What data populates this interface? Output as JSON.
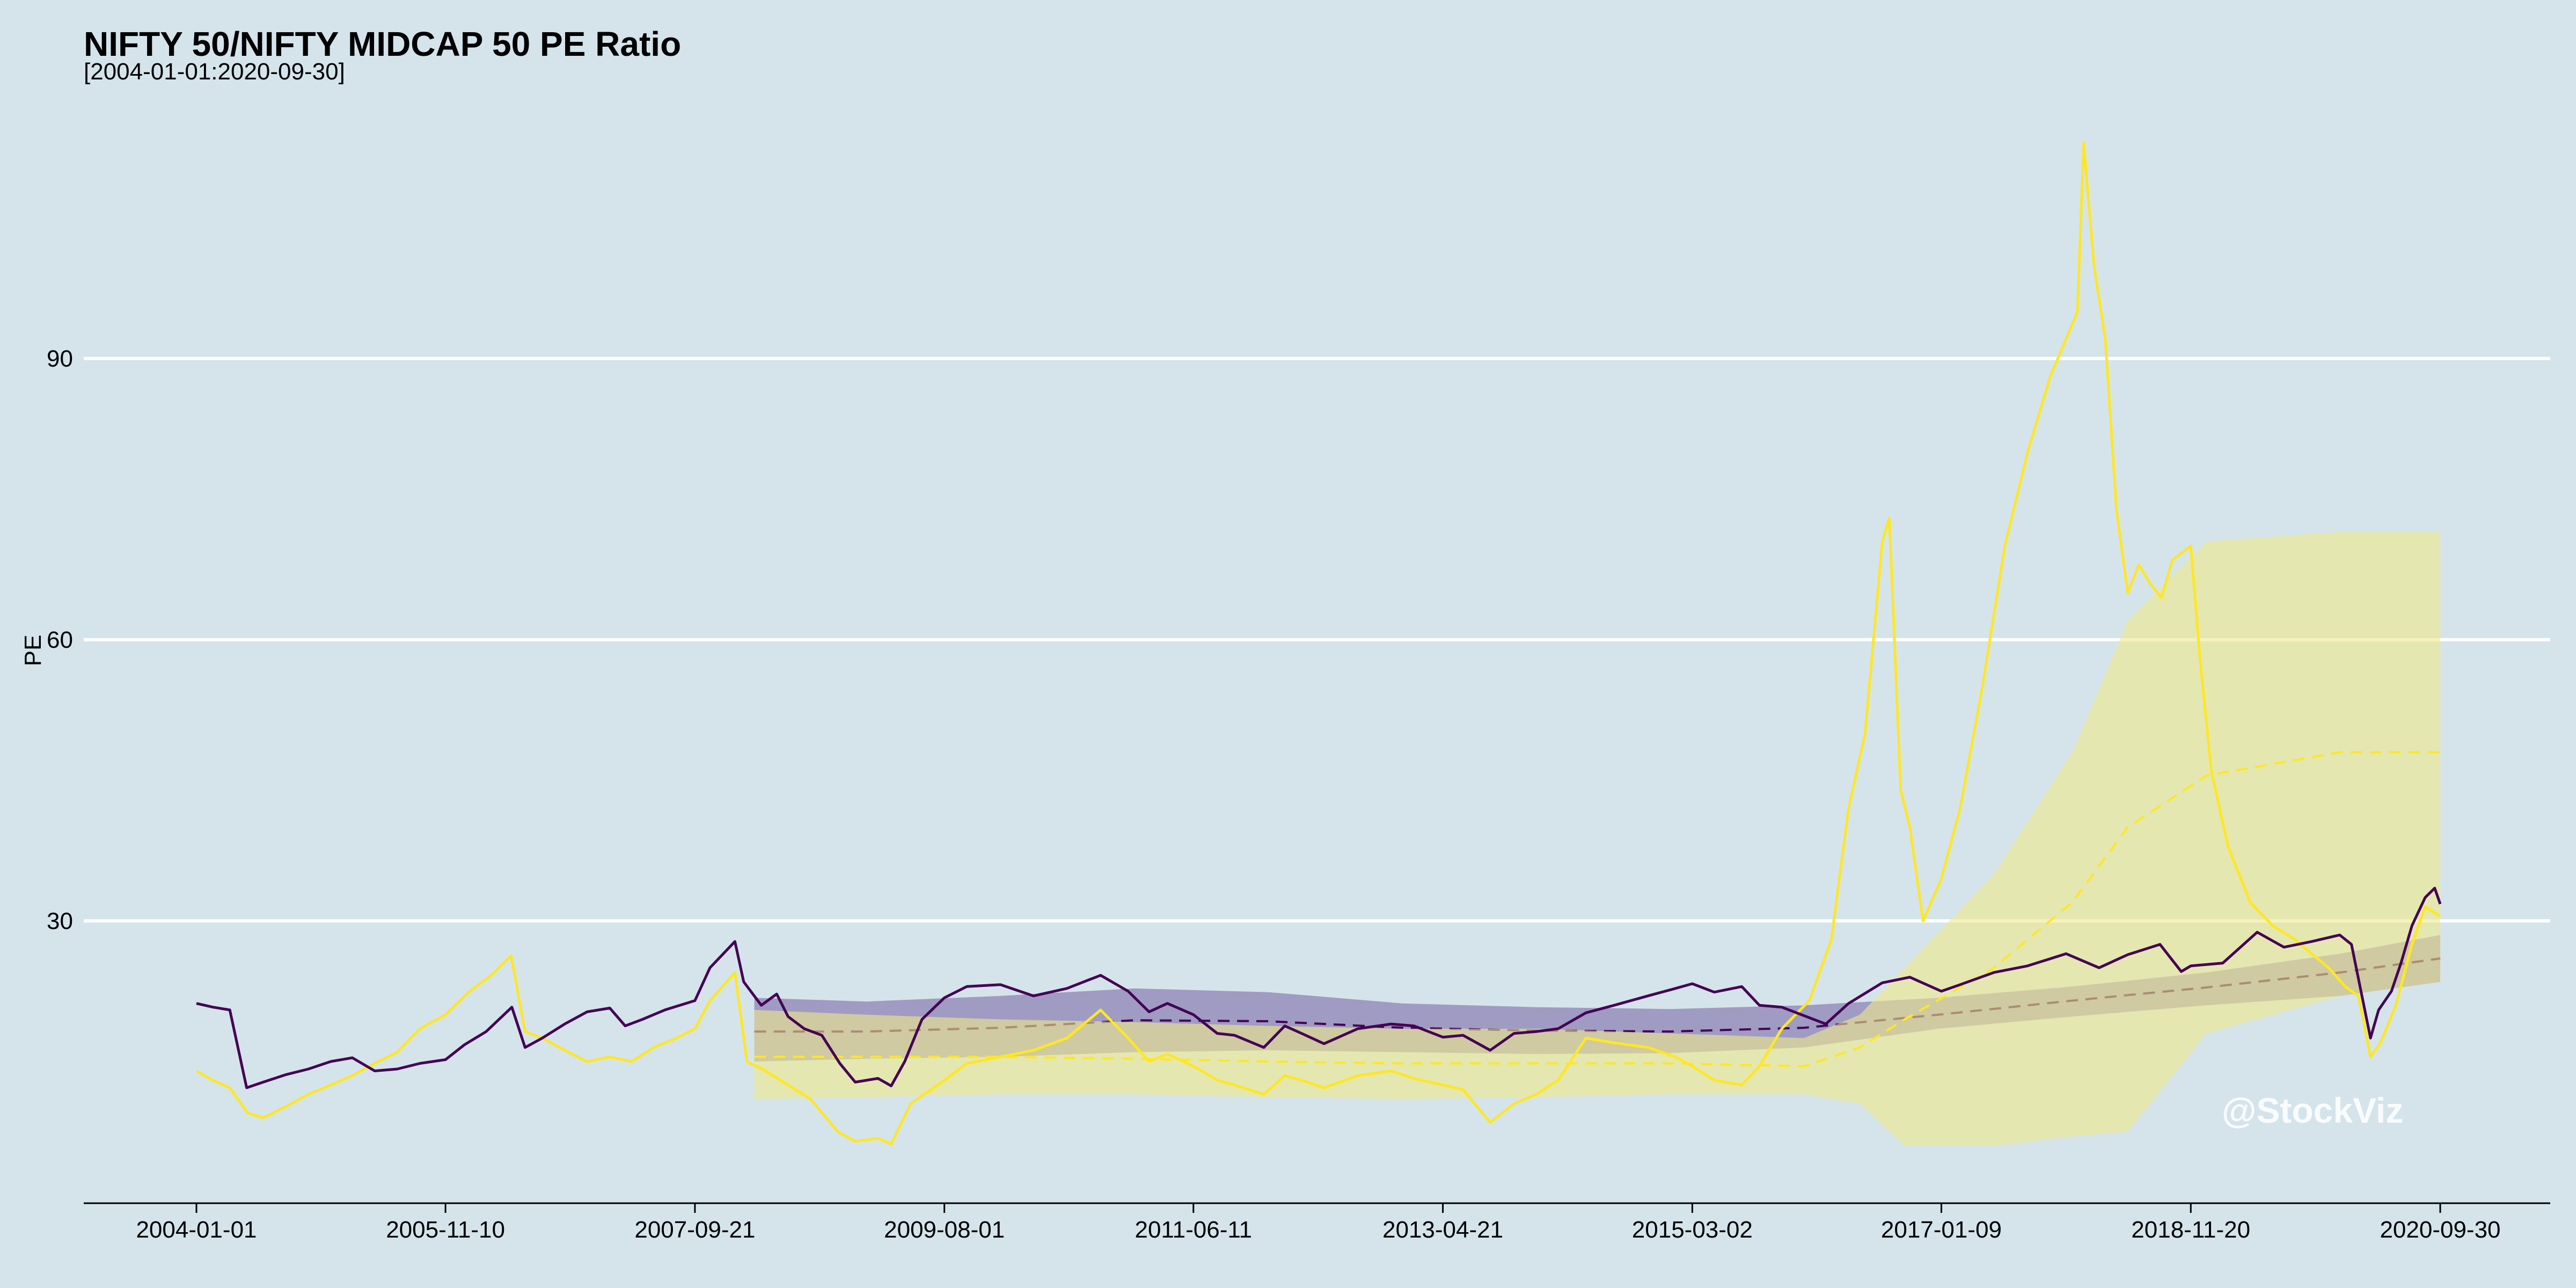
{
  "chart_data": {
    "type": "line",
    "title": "NIFTY 50/NIFTY MIDCAP 50 PE Ratio",
    "subtitle": "[2004-01-01:2020-09-30]",
    "xlabel": "",
    "ylabel": "PE",
    "ylim": [
      0,
      120
    ],
    "yticks": [
      30,
      60,
      90
    ],
    "xticks": [
      "2004-01-01",
      "2005-11-10",
      "2007-09-21",
      "2009-08-01",
      "2011-06-11",
      "2013-04-21",
      "2015-03-02",
      "2017-01-09",
      "2018-11-20",
      "2020-09-30"
    ],
    "x_range": [
      "2004-01-01",
      "2020-09-30"
    ],
    "grid": "horizontal",
    "watermark": "@StockViz",
    "colors": {
      "background": "#d5e4eb",
      "gridline": "#ffffff",
      "nifty50": "#440154",
      "midcap50": "#fde725",
      "nifty50_band": "#7b6aa6",
      "midcap50_band": "#f0e98a"
    },
    "series": [
      {
        "key": "nifty50",
        "color": "#440154",
        "points": [
          [
            "2004-01-01",
            21.2
          ],
          [
            "2004-02-15",
            20.8
          ],
          [
            "2004-04-01",
            20.5
          ],
          [
            "2004-05-17",
            12.2
          ],
          [
            "2004-07-01",
            12.8
          ],
          [
            "2004-09-01",
            13.6
          ],
          [
            "2004-11-01",
            14.2
          ],
          [
            "2005-01-01",
            15.0
          ],
          [
            "2005-03-01",
            15.4
          ],
          [
            "2005-05-01",
            14.0
          ],
          [
            "2005-07-01",
            14.2
          ],
          [
            "2005-09-01",
            14.8
          ],
          [
            "2005-11-10",
            15.2
          ],
          [
            "2006-01-01",
            16.8
          ],
          [
            "2006-03-01",
            18.2
          ],
          [
            "2006-05-10",
            20.8
          ],
          [
            "2006-06-15",
            16.5
          ],
          [
            "2006-08-01",
            17.5
          ],
          [
            "2006-10-01",
            19.0
          ],
          [
            "2006-12-01",
            20.3
          ],
          [
            "2007-02-01",
            20.7
          ],
          [
            "2007-03-15",
            18.8
          ],
          [
            "2007-05-01",
            19.5
          ],
          [
            "2007-07-01",
            20.5
          ],
          [
            "2007-09-21",
            21.5
          ],
          [
            "2007-11-01",
            25.0
          ],
          [
            "2008-01-08",
            27.8
          ],
          [
            "2008-02-01",
            23.5
          ],
          [
            "2008-03-20",
            21.0
          ],
          [
            "2008-05-01",
            22.2
          ],
          [
            "2008-06-01",
            19.8
          ],
          [
            "2008-07-15",
            18.5
          ],
          [
            "2008-09-01",
            17.8
          ],
          [
            "2008-10-20",
            14.8
          ],
          [
            "2008-12-01",
            12.8
          ],
          [
            "2009-02-01",
            13.2
          ],
          [
            "2009-03-09",
            12.4
          ],
          [
            "2009-04-15",
            15.0
          ],
          [
            "2009-06-01",
            19.5
          ],
          [
            "2009-08-01",
            21.8
          ],
          [
            "2009-10-01",
            23.0
          ],
          [
            "2010-01-01",
            23.2
          ],
          [
            "2010-04-01",
            22.0
          ],
          [
            "2010-07-01",
            22.8
          ],
          [
            "2010-10-01",
            24.2
          ],
          [
            "2010-12-15",
            22.5
          ],
          [
            "2011-02-10",
            20.3
          ],
          [
            "2011-04-01",
            21.2
          ],
          [
            "2011-06-11",
            20.0
          ],
          [
            "2011-08-15",
            18.0
          ],
          [
            "2011-10-01",
            17.8
          ],
          [
            "2011-12-20",
            16.5
          ],
          [
            "2012-02-15",
            18.8
          ],
          [
            "2012-04-01",
            18.0
          ],
          [
            "2012-06-01",
            16.9
          ],
          [
            "2012-09-01",
            18.5
          ],
          [
            "2012-12-01",
            19.0
          ],
          [
            "2013-02-01",
            18.8
          ],
          [
            "2013-04-21",
            17.6
          ],
          [
            "2013-06-15",
            17.8
          ],
          [
            "2013-08-28",
            16.2
          ],
          [
            "2013-11-01",
            18.0
          ],
          [
            "2014-01-01",
            18.2
          ],
          [
            "2014-03-01",
            18.5
          ],
          [
            "2014-05-16",
            20.2
          ],
          [
            "2014-08-01",
            21.0
          ],
          [
            "2014-11-01",
            22.0
          ],
          [
            "2015-01-15",
            22.8
          ],
          [
            "2015-03-02",
            23.3
          ],
          [
            "2015-05-01",
            22.4
          ],
          [
            "2015-07-15",
            23.0
          ],
          [
            "2015-09-01",
            21.0
          ],
          [
            "2015-11-01",
            20.8
          ],
          [
            "2016-02-29",
            19.0
          ],
          [
            "2016-05-01",
            21.2
          ],
          [
            "2016-08-01",
            23.4
          ],
          [
            "2016-10-15",
            24.0
          ],
          [
            "2017-01-09",
            22.5
          ],
          [
            "2017-03-01",
            23.2
          ],
          [
            "2017-06-01",
            24.5
          ],
          [
            "2017-09-01",
            25.2
          ],
          [
            "2017-12-15",
            26.5
          ],
          [
            "2018-03-15",
            25.0
          ],
          [
            "2018-06-01",
            26.4
          ],
          [
            "2018-08-28",
            27.5
          ],
          [
            "2018-10-25",
            24.6
          ],
          [
            "2018-11-20",
            25.2
          ],
          [
            "2019-02-15",
            25.5
          ],
          [
            "2019-05-20",
            28.8
          ],
          [
            "2019-08-01",
            27.2
          ],
          [
            "2019-10-15",
            27.8
          ],
          [
            "2019-12-31",
            28.5
          ],
          [
            "2020-02-01",
            27.5
          ],
          [
            "2020-03-24",
            17.5
          ],
          [
            "2020-04-15",
            20.5
          ],
          [
            "2020-05-20",
            22.5
          ],
          [
            "2020-06-15",
            25.5
          ],
          [
            "2020-07-15",
            29.5
          ],
          [
            "2020-08-20",
            32.5
          ],
          [
            "2020-09-15",
            33.5
          ],
          [
            "2020-09-30",
            31.8
          ]
        ]
      },
      {
        "key": "midcap50",
        "color": "#fde725",
        "points": [
          [
            "2004-01-01",
            14.0
          ],
          [
            "2004-02-15",
            13.0
          ],
          [
            "2004-04-01",
            12.2
          ],
          [
            "2004-05-20",
            9.5
          ],
          [
            "2004-07-01",
            9.0
          ],
          [
            "2004-09-01",
            10.2
          ],
          [
            "2004-11-01",
            11.5
          ],
          [
            "2005-01-01",
            12.5
          ],
          [
            "2005-03-01",
            13.5
          ],
          [
            "2005-05-01",
            14.8
          ],
          [
            "2005-07-01",
            16.0
          ],
          [
            "2005-09-01",
            18.5
          ],
          [
            "2005-11-10",
            20.0
          ],
          [
            "2006-01-15",
            22.5
          ],
          [
            "2006-03-15",
            24.2
          ],
          [
            "2006-05-08",
            26.3
          ],
          [
            "2006-06-15",
            18.2
          ],
          [
            "2006-08-01",
            17.5
          ],
          [
            "2006-10-01",
            16.2
          ],
          [
            "2006-12-01",
            15.0
          ],
          [
            "2007-02-01",
            15.5
          ],
          [
            "2007-04-01",
            15.0
          ],
          [
            "2007-06-01",
            16.5
          ],
          [
            "2007-08-01",
            17.5
          ],
          [
            "2007-09-21",
            18.5
          ],
          [
            "2007-11-01",
            21.5
          ],
          [
            "2008-01-08",
            24.5
          ],
          [
            "2008-02-10",
            15.0
          ],
          [
            "2008-04-01",
            14.0
          ],
          [
            "2008-06-01",
            12.5
          ],
          [
            "2008-08-01",
            11.0
          ],
          [
            "2008-10-15",
            7.5
          ],
          [
            "2008-12-01",
            6.5
          ],
          [
            "2009-02-01",
            6.8
          ],
          [
            "2009-03-09",
            6.2
          ],
          [
            "2009-05-01",
            10.5
          ],
          [
            "2009-08-01",
            13.0
          ],
          [
            "2009-10-01",
            14.8
          ],
          [
            "2010-01-01",
            15.5
          ],
          [
            "2010-04-01",
            16.2
          ],
          [
            "2010-07-01",
            17.5
          ],
          [
            "2010-10-01",
            20.5
          ],
          [
            "2010-12-15",
            17.5
          ],
          [
            "2011-02-10",
            15.0
          ],
          [
            "2011-04-01",
            15.8
          ],
          [
            "2011-06-11",
            14.5
          ],
          [
            "2011-08-15",
            13.0
          ],
          [
            "2011-10-01",
            12.5
          ],
          [
            "2011-12-20",
            11.5
          ],
          [
            "2012-02-15",
            13.5
          ],
          [
            "2012-04-01",
            13.0
          ],
          [
            "2012-06-01",
            12.2
          ],
          [
            "2012-09-01",
            13.5
          ],
          [
            "2012-12-01",
            14.0
          ],
          [
            "2013-02-01",
            13.2
          ],
          [
            "2013-04-21",
            12.5
          ],
          [
            "2013-06-15",
            12.0
          ],
          [
            "2013-08-28",
            8.5
          ],
          [
            "2013-11-01",
            10.5
          ],
          [
            "2014-01-01",
            11.5
          ],
          [
            "2014-03-01",
            13.0
          ],
          [
            "2014-05-16",
            17.5
          ],
          [
            "2014-08-01",
            17.0
          ],
          [
            "2014-11-01",
            16.5
          ],
          [
            "2015-01-15",
            15.5
          ],
          [
            "2015-03-02",
            14.5
          ],
          [
            "2015-05-01",
            13.0
          ],
          [
            "2015-07-15",
            12.5
          ],
          [
            "2015-09-01",
            14.5
          ],
          [
            "2015-11-01",
            18.5
          ],
          [
            "2016-01-15",
            21.5
          ],
          [
            "2016-03-15",
            28.0
          ],
          [
            "2016-05-01",
            42.0
          ],
          [
            "2016-06-15",
            50.0
          ],
          [
            "2016-08-01",
            70.5
          ],
          [
            "2016-08-20",
            73.0
          ],
          [
            "2016-09-20",
            44.0
          ],
          [
            "2016-10-15",
            40.0
          ],
          [
            "2016-11-20",
            30.0
          ],
          [
            "2017-01-09",
            34.5
          ],
          [
            "2017-03-01",
            42.0
          ],
          [
            "2017-05-01",
            55.0
          ],
          [
            "2017-07-01",
            70.0
          ],
          [
            "2017-09-01",
            80.0
          ],
          [
            "2017-11-01",
            88.0
          ],
          [
            "2018-01-15",
            95.0
          ],
          [
            "2018-02-01",
            113.0
          ],
          [
            "2018-03-01",
            100.0
          ],
          [
            "2018-04-01",
            92.0
          ],
          [
            "2018-05-01",
            74.0
          ],
          [
            "2018-06-01",
            65.0
          ],
          [
            "2018-07-01",
            68.0
          ],
          [
            "2018-08-01",
            66.0
          ],
          [
            "2018-09-01",
            64.5
          ],
          [
            "2018-10-01",
            68.5
          ],
          [
            "2018-11-20",
            70.0
          ],
          [
            "2018-12-15",
            58.0
          ],
          [
            "2019-01-15",
            46.0
          ],
          [
            "2019-03-01",
            38.0
          ],
          [
            "2019-05-01",
            32.0
          ],
          [
            "2019-07-01",
            29.5
          ],
          [
            "2019-09-01",
            28.0
          ],
          [
            "2019-10-15",
            26.5
          ],
          [
            "2019-12-01",
            25.0
          ],
          [
            "2020-01-15",
            23.0
          ],
          [
            "2020-02-20",
            22.0
          ],
          [
            "2020-03-24",
            15.5
          ],
          [
            "2020-04-20",
            17.0
          ],
          [
            "2020-06-01",
            21.0
          ],
          [
            "2020-07-15",
            27.5
          ],
          [
            "2020-08-20",
            31.5
          ],
          [
            "2020-09-30",
            30.5
          ]
        ]
      }
    ],
    "bands": [
      {
        "key": "nifty50_band",
        "color": "#7b6aa6",
        "opacity": 0.6,
        "points": [
          [
            "2008-03-01",
            21.8,
            15.0,
            18.2
          ],
          [
            "2009-01-01",
            21.4,
            15.3,
            18.2
          ],
          [
            "2010-01-01",
            22.0,
            15.5,
            18.6
          ],
          [
            "2011-01-01",
            22.8,
            16.0,
            19.4
          ],
          [
            "2012-01-01",
            22.4,
            16.2,
            19.3
          ],
          [
            "2013-01-01",
            21.2,
            16.0,
            18.6
          ],
          [
            "2014-01-01",
            20.8,
            15.8,
            18.3
          ],
          [
            "2015-01-01",
            20.6,
            15.9,
            18.2
          ],
          [
            "2016-01-01",
            21.0,
            16.5,
            18.6
          ],
          [
            "2017-01-01",
            21.8,
            18.5,
            20.0
          ],
          [
            "2018-01-01",
            23.0,
            19.8,
            21.5
          ],
          [
            "2019-01-01",
            24.5,
            21.0,
            22.9
          ],
          [
            "2020-01-01",
            26.5,
            22.0,
            24.5
          ],
          [
            "2020-09-30",
            28.5,
            23.5,
            26.0
          ]
        ]
      },
      {
        "key": "midcap50_band",
        "color": "#f0e98a",
        "opacity": 0.6,
        "points": [
          [
            "2008-03-01",
            20.5,
            11.0,
            15.5
          ],
          [
            "2009-01-01",
            20.0,
            11.2,
            15.5
          ],
          [
            "2010-01-01",
            19.5,
            11.5,
            15.5
          ],
          [
            "2011-01-01",
            19.2,
            11.5,
            15.3
          ],
          [
            "2012-01-01",
            18.8,
            11.2,
            15.0
          ],
          [
            "2013-01-01",
            18.5,
            11.0,
            14.8
          ],
          [
            "2014-01-01",
            18.5,
            11.2,
            14.8
          ],
          [
            "2015-01-01",
            18.0,
            11.5,
            14.8
          ],
          [
            "2016-01-01",
            17.5,
            11.5,
            14.5
          ],
          [
            "2016-06-01",
            20.0,
            10.5,
            16.5
          ],
          [
            "2016-10-01",
            25.0,
            6.0,
            19.5
          ],
          [
            "2017-06-01",
            35.0,
            6.0,
            25.0
          ],
          [
            "2018-01-01",
            48.0,
            7.0,
            32.0
          ],
          [
            "2018-06-01",
            62.0,
            7.5,
            40.0
          ],
          [
            "2019-01-01",
            70.5,
            18.0,
            45.5
          ],
          [
            "2020-01-01",
            71.5,
            22.0,
            48.0
          ],
          [
            "2020-09-30",
            71.5,
            23.5,
            48.0
          ]
        ]
      }
    ]
  }
}
